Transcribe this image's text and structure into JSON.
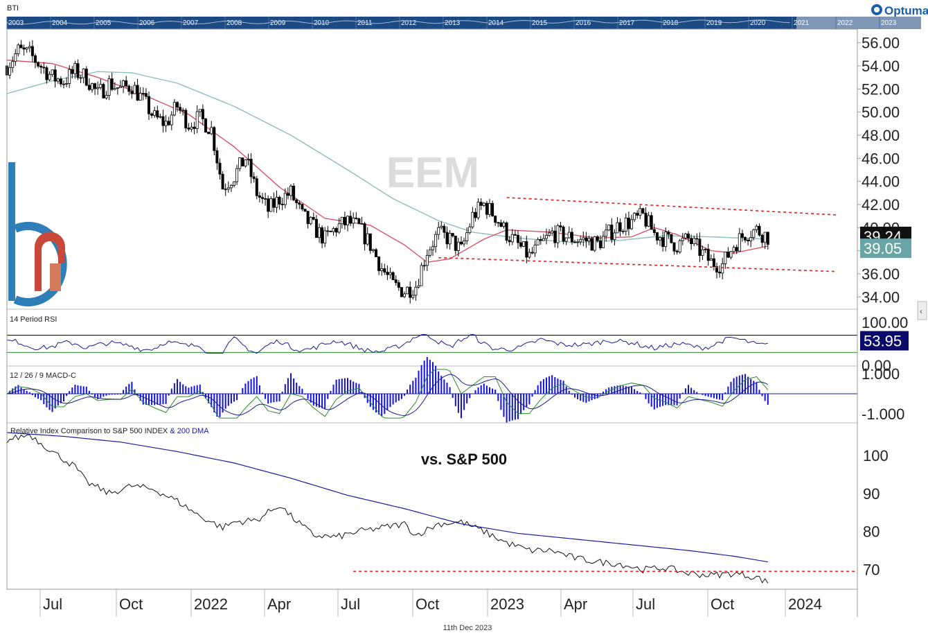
{
  "ticker": "BTI",
  "brand": "Optuma",
  "watermark": "EEM",
  "footer_date": "11th Dec 2023",
  "overview_years": [
    "2003",
    "2004",
    "2005",
    "2006",
    "2007",
    "2008",
    "2009",
    "2010",
    "2011",
    "2012",
    "2013",
    "2014",
    "2015",
    "2016",
    "2017",
    "2018",
    "2019",
    "2020",
    "2021",
    "2022",
    "2023"
  ],
  "colors": {
    "ma_short": "#d9485a",
    "ma_long": "#8fbcbc",
    "channel": "#e02020",
    "rsi_line": "#1a1a8c",
    "macd_line": "#2a8a2a",
    "signal_line": "#1a1a8c",
    "hist": "#1010e0",
    "rel_line": "#111111",
    "rel_ma": "#1a1a9c",
    "badge_price": "#111111",
    "badge_ma": "#6aa5a5",
    "badge_rsi": "#0a0a6a"
  },
  "chart_data": [
    {
      "type": "candlestick",
      "ylim": [
        33,
        57
      ],
      "yticks": [
        "56.00",
        "54.00",
        "52.00",
        "50.00",
        "48.00",
        "46.00",
        "44.00",
        "42.00",
        "40.00",
        "38.00",
        "36.00",
        "34.00"
      ],
      "last_price": "39.24",
      "ma_value": "39.05",
      "x_labels": [
        "Jul",
        "Oct",
        "2022",
        "Apr",
        "Jul",
        "Oct",
        "2023",
        "Apr",
        "Jul",
        "Oct",
        "2024"
      ],
      "price_path": [
        [
          0,
          54.0
        ],
        [
          2,
          55.3
        ],
        [
          4,
          55.0
        ],
        [
          6,
          54.0
        ],
        [
          8,
          53.0
        ],
        [
          10,
          52.7
        ],
        [
          12,
          53.5
        ],
        [
          14,
          53.0
        ],
        [
          16,
          51.5
        ],
        [
          18,
          52.5
        ],
        [
          20,
          52.0
        ],
        [
          22,
          52.3
        ],
        [
          24,
          51.0
        ],
        [
          26,
          49.5
        ],
        [
          28,
          49.0
        ],
        [
          30,
          50.5
        ],
        [
          32,
          49.0
        ],
        [
          34,
          49.5
        ],
        [
          36,
          48.5
        ],
        [
          38,
          43.5
        ],
        [
          40,
          44.5
        ],
        [
          42,
          46.0
        ],
        [
          44,
          43.0
        ],
        [
          46,
          41.5
        ],
        [
          48,
          42.5
        ],
        [
          50,
          43.0
        ],
        [
          52,
          41.0
        ],
        [
          54,
          40.0
        ],
        [
          56,
          39.0
        ],
        [
          58,
          40.0
        ],
        [
          60,
          40.5
        ],
        [
          62,
          40.0
        ],
        [
          64,
          38.5
        ],
        [
          66,
          36.5
        ],
        [
          68,
          35.0
        ],
        [
          70,
          34.5
        ],
        [
          72,
          35.0
        ],
        [
          74,
          38.0
        ],
        [
          76,
          39.5
        ],
        [
          78,
          39.0
        ],
        [
          80,
          38.0
        ],
        [
          82,
          41.0
        ],
        [
          84,
          42.0
        ],
        [
          86,
          41.0
        ],
        [
          88,
          39.5
        ],
        [
          90,
          38.5
        ],
        [
          92,
          37.5
        ],
        [
          94,
          38.5
        ],
        [
          96,
          39.5
        ],
        [
          98,
          39.3
        ],
        [
          100,
          39.0
        ],
        [
          102,
          38.9
        ],
        [
          104,
          38.6
        ],
        [
          106,
          39.5
        ],
        [
          108,
          40.3
        ],
        [
          110,
          40.5
        ],
        [
          112,
          41.0
        ],
        [
          114,
          39.5
        ],
        [
          116,
          39.0
        ],
        [
          118,
          38.5
        ],
        [
          120,
          39.0
        ],
        [
          122,
          38.0
        ],
        [
          124,
          37.0
        ],
        [
          126,
          36.8
        ],
        [
          128,
          38.5
        ],
        [
          130,
          39.5
        ],
        [
          132,
          39.8
        ],
        [
          134,
          39.2
        ]
      ],
      "ma_short": [
        [
          0,
          54.5
        ],
        [
          8,
          54.2
        ],
        [
          16,
          53.0
        ],
        [
          24,
          51.5
        ],
        [
          32,
          49.8
        ],
        [
          40,
          47.0
        ],
        [
          48,
          43.5
        ],
        [
          56,
          40.8
        ],
        [
          64,
          40.2
        ],
        [
          70,
          38.5
        ],
        [
          74,
          37.0
        ],
        [
          78,
          37.3
        ],
        [
          84,
          39.0
        ],
        [
          88,
          39.8
        ],
        [
          96,
          39.6
        ],
        [
          104,
          39.1
        ],
        [
          110,
          39.2
        ],
        [
          114,
          40.0
        ],
        [
          118,
          39.4
        ],
        [
          124,
          38.0
        ],
        [
          128,
          37.8
        ],
        [
          134,
          38.4
        ]
      ],
      "ma_long": [
        [
          0,
          51.6
        ],
        [
          8,
          52.7
        ],
        [
          16,
          53.5
        ],
        [
          22,
          53.4
        ],
        [
          30,
          52.5
        ],
        [
          40,
          50.5
        ],
        [
          50,
          48.0
        ],
        [
          60,
          45.0
        ],
        [
          68,
          42.5
        ],
        [
          76,
          40.6
        ],
        [
          82,
          39.6
        ],
        [
          90,
          39.1
        ],
        [
          100,
          38.7
        ],
        [
          108,
          38.9
        ],
        [
          116,
          39.3
        ],
        [
          124,
          39.2
        ],
        [
          134,
          39.0
        ]
      ],
      "channel_top": [
        [
          88,
          42.6
        ],
        [
          146,
          41.1
        ]
      ],
      "channel_bottom": [
        [
          76,
          37.4
        ],
        [
          146,
          36.2
        ]
      ]
    },
    {
      "type": "line",
      "title": "14 Period RSI",
      "ylim": [
        0,
        100
      ],
      "yticks": [
        "100.00",
        "0.00"
      ],
      "last_value": "53.95",
      "overbought": 70,
      "oversold": 30
    },
    {
      "type": "bar",
      "title": "12 / 26 / 9 MACD-C",
      "ylim": [
        -1.3,
        1.3
      ],
      "yticks": [
        "1.000",
        "-1.000"
      ]
    },
    {
      "type": "line",
      "title": "Relative Index Comparison to S&P 500 INDEX",
      "title_suffix": "& 200 DMA",
      "annotation": "vs. S&P 500",
      "ylim": [
        65,
        108
      ],
      "yticks": [
        "100",
        "90",
        "80",
        "70"
      ],
      "support_level": 69.5,
      "rel_path": [
        [
          0,
          104
        ],
        [
          4,
          105.5
        ],
        [
          8,
          101
        ],
        [
          12,
          97
        ],
        [
          14,
          93
        ],
        [
          18,
          90
        ],
        [
          22,
          92
        ],
        [
          26,
          91
        ],
        [
          30,
          88
        ],
        [
          34,
          84
        ],
        [
          38,
          81
        ],
        [
          40,
          82.5
        ],
        [
          44,
          83
        ],
        [
          48,
          87
        ],
        [
          50,
          84
        ],
        [
          54,
          79
        ],
        [
          58,
          78.5
        ],
        [
          62,
          80
        ],
        [
          66,
          81
        ],
        [
          70,
          82
        ],
        [
          72,
          79
        ],
        [
          76,
          82
        ],
        [
          80,
          82.5
        ],
        [
          84,
          80
        ],
        [
          88,
          77
        ],
        [
          92,
          75
        ],
        [
          96,
          75
        ],
        [
          100,
          73
        ],
        [
          104,
          72
        ],
        [
          108,
          71.5
        ],
        [
          112,
          70
        ],
        [
          116,
          70.5
        ],
        [
          120,
          69
        ],
        [
          124,
          68.5
        ],
        [
          128,
          69
        ],
        [
          132,
          68
        ],
        [
          134,
          66.5
        ]
      ],
      "rel_ma": [
        [
          0,
          106
        ],
        [
          10,
          105
        ],
        [
          20,
          103.5
        ],
        [
          30,
          101
        ],
        [
          40,
          98
        ],
        [
          50,
          94
        ],
        [
          60,
          89.5
        ],
        [
          70,
          86
        ],
        [
          80,
          82
        ],
        [
          90,
          79.5
        ],
        [
          100,
          78
        ],
        [
          110,
          76.5
        ],
        [
          120,
          75
        ],
        [
          128,
          73.5
        ],
        [
          134,
          72
        ]
      ]
    }
  ]
}
